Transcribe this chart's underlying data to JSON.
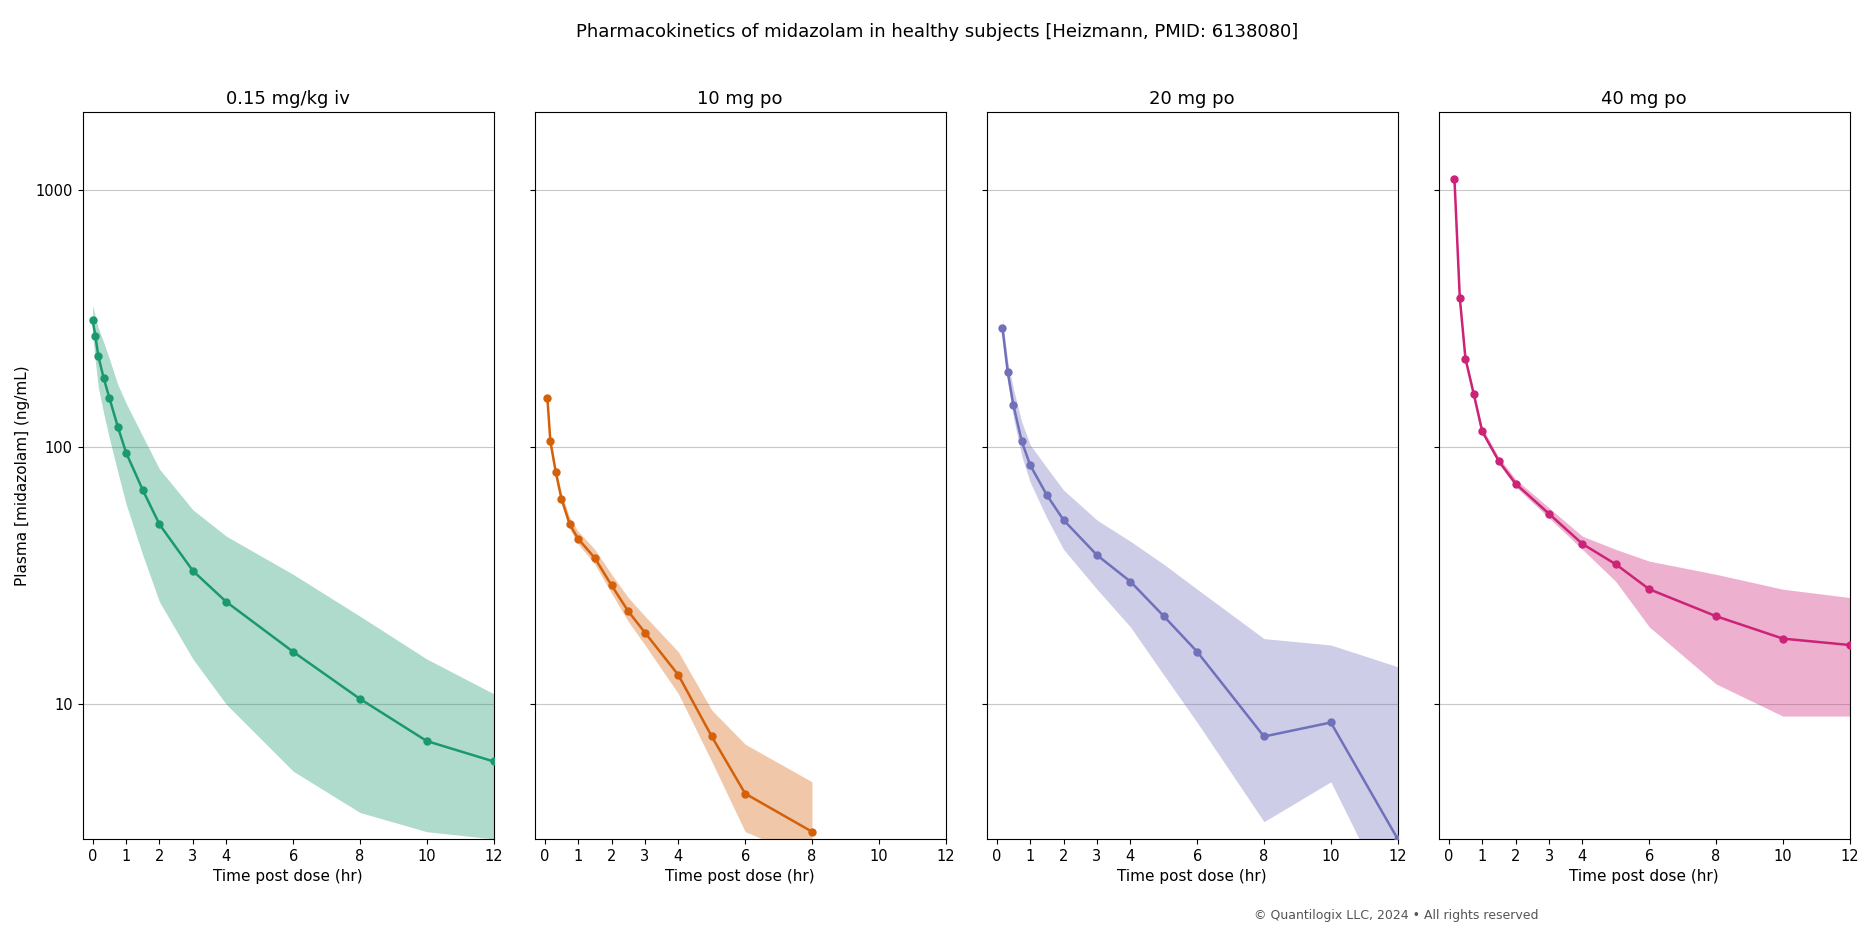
{
  "title": "Pharmacokinetics of midazolam in healthy subjects [Heizmann, PMID: 6138080]",
  "ylabel": "Plasma [midazolam] (ng/mL)",
  "xlabel": "Time post dose (hr)",
  "copyright": "© Quantilogix LLC, 2024 • All rights reserved",
  "panels": [
    {
      "title": "0.15 mg/kg iv",
      "color": "#1a9970",
      "time": [
        0.0,
        0.08,
        0.17,
        0.33,
        0.5,
        0.75,
        1.0,
        1.5,
        2.0,
        3.0,
        4.0,
        6.0,
        8.0,
        10.0,
        12.0
      ],
      "median": [
        310,
        270,
        225,
        185,
        155,
        120,
        95,
        68,
        50,
        33,
        25,
        16,
        10.5,
        7.2,
        6.0
      ],
      "ci_low": [
        270,
        215,
        170,
        135,
        108,
        80,
        60,
        38,
        25,
        15,
        10,
        5.5,
        3.8,
        3.2,
        3.0
      ],
      "ci_high": [
        355,
        320,
        290,
        255,
        220,
        175,
        148,
        110,
        82,
        57,
        45,
        32,
        22,
        15,
        11
      ],
      "xlim": [
        -0.3,
        12
      ],
      "xticks": [
        0,
        1,
        2,
        3,
        4,
        6,
        8,
        10,
        12
      ]
    },
    {
      "title": "10 mg po",
      "color": "#d4600a",
      "time": [
        0.08,
        0.17,
        0.33,
        0.5,
        0.75,
        1.0,
        1.5,
        2.0,
        2.5,
        3.0,
        4.0,
        5.0,
        6.0,
        8.0
      ],
      "median": [
        155,
        105,
        80,
        63,
        50,
        44,
        37,
        29,
        23,
        19,
        13,
        7.5,
        4.5,
        3.2
      ],
      "ci_low": [
        152,
        103,
        78,
        61,
        48,
        42,
        35,
        27,
        21,
        17,
        11,
        6.0,
        3.2,
        2.5
      ],
      "ci_high": [
        158,
        108,
        83,
        66,
        53,
        47,
        40,
        32,
        26,
        22,
        16,
        9.5,
        7.0,
        5.0
      ],
      "xlim": [
        -0.3,
        12
      ],
      "xticks": [
        0,
        1,
        2,
        3,
        4,
        6,
        8,
        10,
        12
      ]
    },
    {
      "title": "20 mg po",
      "color": "#7070bb",
      "time": [
        0.17,
        0.33,
        0.5,
        0.75,
        1.0,
        1.5,
        2.0,
        3.0,
        4.0,
        5.0,
        6.0,
        8.0,
        10.0,
        12.0
      ],
      "median": [
        290,
        195,
        145,
        105,
        85,
        65,
        52,
        38,
        30,
        22,
        16,
        7.5,
        8.5,
        3.0
      ],
      "ci_low": [
        270,
        178,
        130,
        92,
        73,
        53,
        40,
        28,
        20,
        13,
        8.5,
        3.5,
        5.0,
        1.5
      ],
      "ci_high": [
        315,
        215,
        168,
        125,
        102,
        83,
        68,
        52,
        43,
        35,
        28,
        18,
        17,
        14
      ],
      "xlim": [
        -0.3,
        12
      ],
      "xticks": [
        0,
        1,
        2,
        3,
        4,
        6,
        8,
        10,
        12
      ]
    },
    {
      "title": "40 mg po",
      "color": "#cc2277",
      "time": [
        0.17,
        0.33,
        0.5,
        0.75,
        1.0,
        1.5,
        2.0,
        3.0,
        4.0,
        5.0,
        6.0,
        8.0,
        10.0,
        12.0
      ],
      "median": [
        1100,
        380,
        220,
        160,
        115,
        88,
        72,
        55,
        42,
        35,
        28,
        22,
        18,
        17
      ],
      "ci_low": [
        1090,
        375,
        215,
        156,
        112,
        86,
        70,
        53,
        40,
        30,
        20,
        12,
        9,
        9
      ],
      "ci_high": [
        1110,
        385,
        226,
        165,
        119,
        91,
        75,
        58,
        45,
        40,
        36,
        32,
        28,
        26
      ],
      "xlim": [
        -0.3,
        12
      ],
      "xticks": [
        0,
        1,
        2,
        3,
        4,
        6,
        8,
        10,
        12
      ]
    }
  ],
  "ylim": [
    3.0,
    2000
  ],
  "yticks": [
    10,
    100,
    1000
  ],
  "background_color": "#ffffff",
  "title_fontsize": 13,
  "subtitle_fontsize": 13,
  "label_fontsize": 11,
  "tick_fontsize": 10.5
}
